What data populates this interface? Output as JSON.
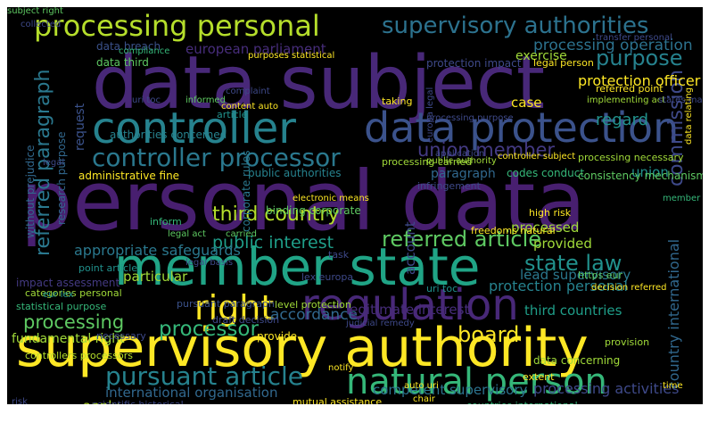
{
  "cloud": {
    "background": "#000000",
    "words": [
      {
        "text": "data subject",
        "color": "#482878"
      },
      {
        "text": "personal data",
        "color": "#481f70"
      },
      {
        "text": "supervisory authority",
        "color": "#fde725"
      },
      {
        "text": "member state",
        "color": "#20a486"
      },
      {
        "text": "regulation",
        "color": "#482878"
      },
      {
        "text": "controller",
        "color": "#26828e"
      },
      {
        "text": "data protection",
        "color": "#3b528b"
      },
      {
        "text": "processing personal",
        "color": "#b5de2b"
      },
      {
        "text": "natural person",
        "color": "#35b779"
      },
      {
        "text": "supervisory authorities",
        "color": "#2c728e"
      },
      {
        "text": "right",
        "color": "#fde725"
      },
      {
        "text": "controller processor",
        "color": "#2a788e"
      },
      {
        "text": "referred article",
        "color": "#5ec962"
      },
      {
        "text": "third country",
        "color": "#b5de2b"
      },
      {
        "text": "processing",
        "color": "#5ec962"
      },
      {
        "text": "pursuant article",
        "color": "#26828e"
      },
      {
        "text": "referred paragraph",
        "color": "#2a788e"
      },
      {
        "text": "purpose",
        "color": "#26828e"
      },
      {
        "text": "state law",
        "color": "#21918c"
      },
      {
        "text": "board",
        "color": "#fde725"
      },
      {
        "text": "union member",
        "color": "#443a83"
      },
      {
        "text": "public interest",
        "color": "#1f9e89"
      },
      {
        "text": "commission",
        "color": "#3e4989"
      },
      {
        "text": "processor",
        "color": "#35b779"
      },
      {
        "text": "processing operation",
        "color": "#2c728e"
      },
      {
        "text": "protection officer",
        "color": "#fde725"
      },
      {
        "text": "regard",
        "color": "#21918c"
      },
      {
        "text": "appropriate safeguards",
        "color": "#2a788e"
      },
      {
        "text": "international organisation",
        "color": "#31688e"
      },
      {
        "text": "processing activities",
        "color": "#3e4989"
      },
      {
        "text": "accordance",
        "color": "#31688e"
      },
      {
        "text": "competent supervisory",
        "color": "#2c728e"
      },
      {
        "text": "lead supervisory",
        "color": "#2a788e"
      },
      {
        "text": "protection personal",
        "color": "#26828e"
      },
      {
        "text": "third countries",
        "color": "#1f9e89"
      },
      {
        "text": "legitimate interest",
        "color": "#472d7b"
      },
      {
        "text": "european parliament",
        "color": "#472d7b"
      },
      {
        "text": "fundamental right",
        "color": "#a0da39"
      },
      {
        "text": "country international",
        "color": "#31688e"
      },
      {
        "text": "apply",
        "color": "#b5de2b"
      },
      {
        "text": "particular",
        "color": "#a0da39"
      },
      {
        "text": "paragraph",
        "color": "#31688e"
      },
      {
        "text": "processed",
        "color": "#a0da39"
      },
      {
        "text": "provided",
        "color": "#a0da39"
      },
      {
        "text": "union",
        "color": "#21918c"
      },
      {
        "text": "account",
        "color": "#3e4989"
      },
      {
        "text": "case",
        "color": "#fde725"
      },
      {
        "text": "exercise",
        "color": "#a0da39"
      },
      {
        "text": "request",
        "color": "#3b528b"
      },
      {
        "text": "data breach",
        "color": "#3b528b"
      },
      {
        "text": "data third",
        "color": "#5ec962"
      },
      {
        "text": "administrative fine",
        "color": "#fde725"
      },
      {
        "text": "without prejudice",
        "color": "#31688e"
      },
      {
        "text": "research purpose",
        "color": "#31688e"
      },
      {
        "text": "authorities concerned",
        "color": "#26828e"
      },
      {
        "text": "corporate rules",
        "color": "#2a788e"
      },
      {
        "text": "binding corporate",
        "color": "#5ec962"
      },
      {
        "text": "public authorities",
        "color": "#26828e"
      },
      {
        "text": "codes conduct",
        "color": "#35b779"
      },
      {
        "text": "consistency mechanism",
        "color": "#5ec962"
      },
      {
        "text": "protection impact",
        "color": "#3e4989"
      },
      {
        "text": "legal person",
        "color": "#fde725"
      },
      {
        "text": "impact assessment",
        "color": "#443a83"
      },
      {
        "text": "point article",
        "color": "#21918c"
      },
      {
        "text": "categories personal",
        "color": "#a0da39"
      },
      {
        "text": "statistical purpose",
        "color": "#35b779"
      },
      {
        "text": "pursuant paragraph",
        "color": "#3b528b"
      },
      {
        "text": "controllers processors",
        "color": "#b5de2b"
      },
      {
        "text": "draft decision",
        "color": "#3e4989"
      },
      {
        "text": "provide",
        "color": "#fde725"
      },
      {
        "text": "necessary",
        "color": "#3e4989"
      },
      {
        "text": "data concerning",
        "color": "#a0da39"
      },
      {
        "text": "provision",
        "color": "#a0da39"
      },
      {
        "text": "freedoms natural",
        "color": "#fde725"
      },
      {
        "text": "level protection",
        "color": "#a0da39"
      },
      {
        "text": "infringement",
        "color": "#3e4989"
      },
      {
        "text": "article",
        "color": "#21918c"
      },
      {
        "text": "inform",
        "color": "#35b779"
      },
      {
        "text": "high risk",
        "color": "#fde725"
      },
      {
        "text": "processing carried",
        "color": "#a0da39"
      },
      {
        "text": "scientific historical",
        "color": "#3e4989"
      },
      {
        "text": "mutual assistance",
        "color": "#fde725"
      },
      {
        "text": "countries international",
        "color": "#35b779"
      },
      {
        "text": "referred point",
        "color": "#fde725"
      },
      {
        "text": "implementing act",
        "color": "#a0da39"
      },
      {
        "text": "processing necessary",
        "color": "#a0da39"
      },
      {
        "text": "lex europa",
        "color": "#3e4989"
      },
      {
        "text": "eur lex",
        "color": "#21918c"
      },
      {
        "text": "uri toc",
        "color": "#21918c"
      },
      {
        "text": "https eur",
        "color": "#5ec962"
      },
      {
        "text": "taking",
        "color": "#fde725"
      },
      {
        "text": "informed",
        "color": "#5ec962"
      },
      {
        "text": "legal act",
        "color": "#5ec962"
      },
      {
        "text": "carried",
        "color": "#5ec962"
      },
      {
        "text": "task",
        "color": "#3e4989"
      },
      {
        "text": "extent",
        "color": "#fde725"
      },
      {
        "text": "time",
        "color": "#fde725"
      },
      {
        "text": "notify",
        "color": "#fde725"
      },
      {
        "text": "risk",
        "color": "#3e4989"
      },
      {
        "text": "chair",
        "color": "#fde725"
      },
      {
        "text": "auto uri",
        "color": "#fde725"
      },
      {
        "text": "content auto",
        "color": "#fde725"
      },
      {
        "text": "compliance",
        "color": "#35b779"
      },
      {
        "text": "complaint",
        "color": "#3e4989"
      },
      {
        "text": "legal basis",
        "color": "#3e4989"
      },
      {
        "text": "public authority",
        "color": "#a0da39"
      },
      {
        "text": "controller subject",
        "color": "#fde725"
      },
      {
        "text": "purposes statistical",
        "color": "#fde725"
      },
      {
        "text": "states may",
        "color": "#3e4989"
      },
      {
        "text": "europa legal",
        "color": "#3e4989"
      },
      {
        "text": "processing purpose",
        "color": "#3e4989"
      },
      {
        "text": "member states",
        "color": "#35b779"
      },
      {
        "text": "legal",
        "color": "#3e4989"
      },
      {
        "text": "collected",
        "color": "#3e4989"
      },
      {
        "text": "certification mechanism",
        "color": "#5ec962"
      },
      {
        "text": "judicial remedy",
        "color": "#3e4989"
      },
      {
        "text": "electronic means",
        "color": "#fde725"
      },
      {
        "text": "uri toc",
        "color": "#3e4989"
      },
      {
        "text": "decision referred",
        "color": "#fde725"
      },
      {
        "text": "transfer personal",
        "color": "#3e4989"
      },
      {
        "text": "data relating",
        "color": "#fde725"
      },
      {
        "text": "application",
        "color": "#3e4989"
      },
      {
        "text": "subject right",
        "color": "#5ec962"
      }
    ]
  }
}
